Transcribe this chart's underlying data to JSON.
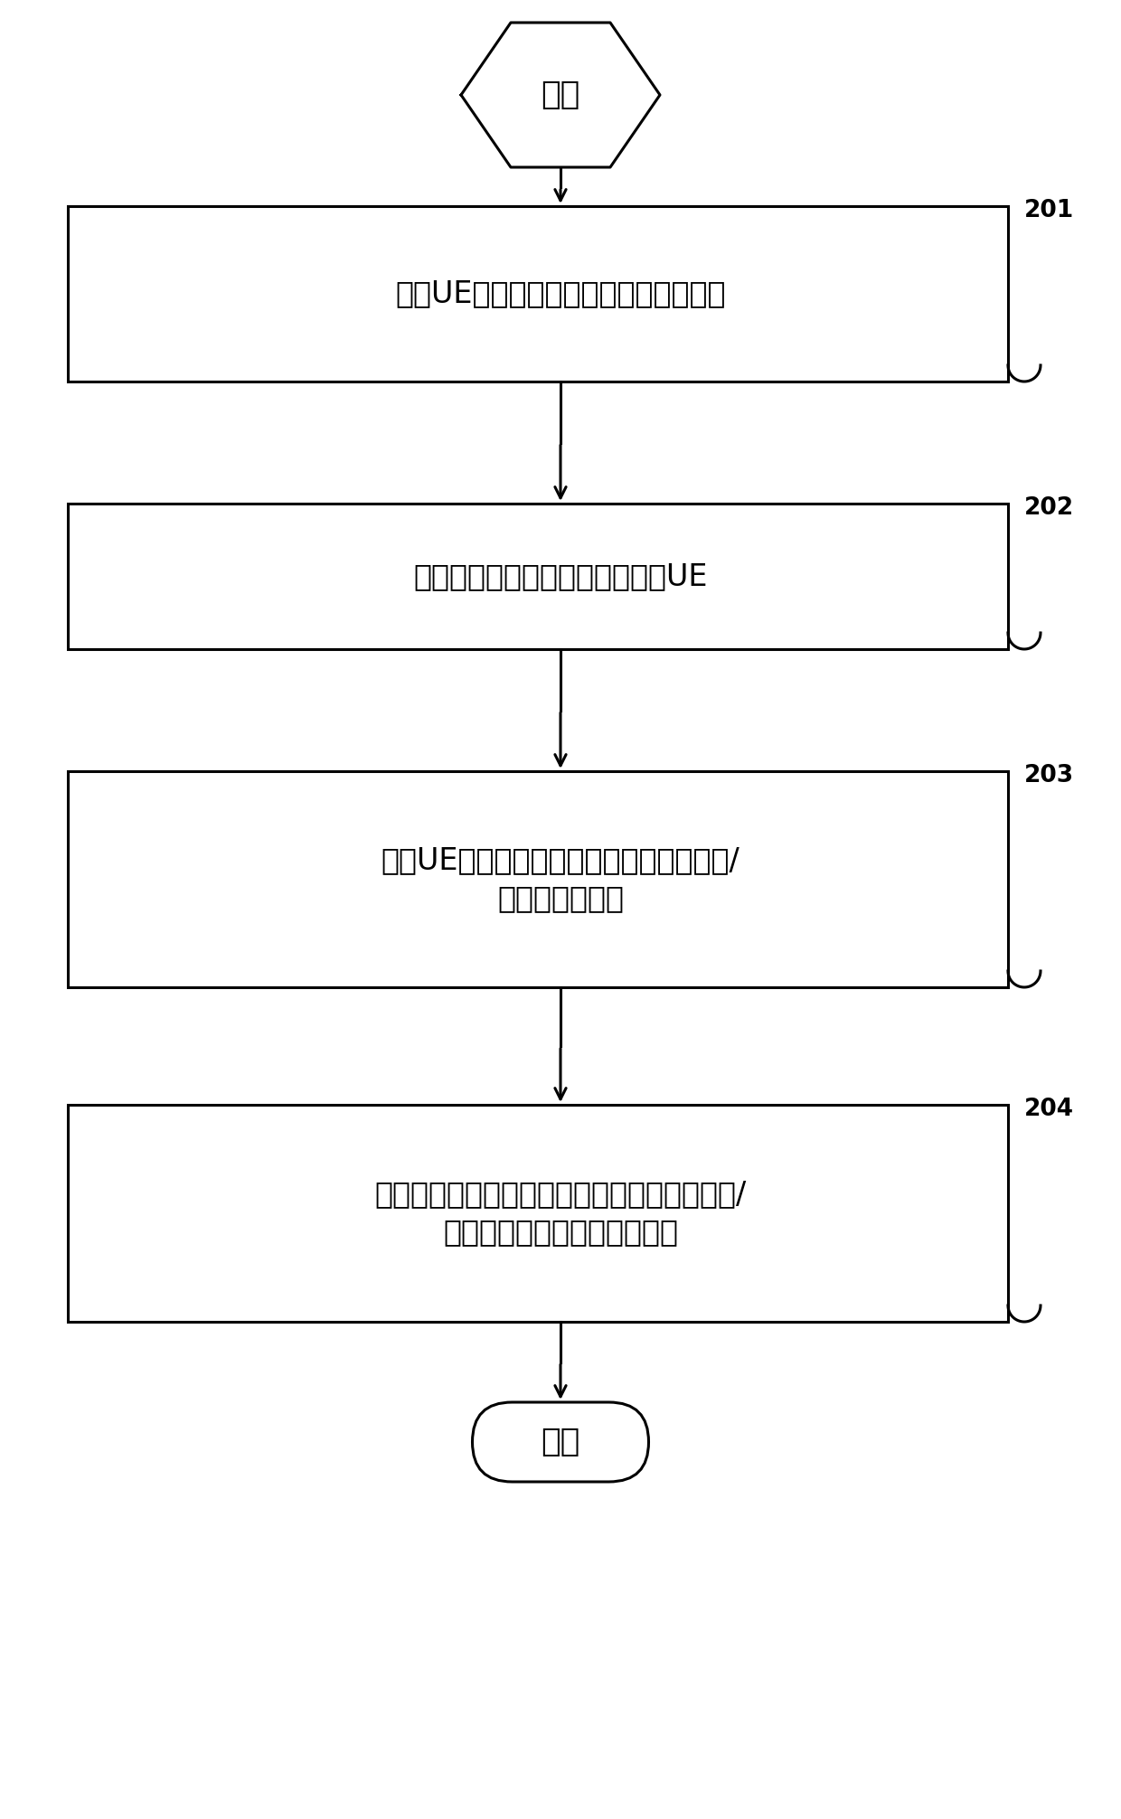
{
  "bg_color": "#ffffff",
  "line_color": "#000000",
  "text_color": "#000000",
  "start_label": "开始",
  "end_label": "结束",
  "boxes": [
    {
      "lines": [
        "配置UE的上行发送波束的功率控制参数"
      ],
      "tag": "201"
    },
    {
      "lines": [
        "将所述功率控制参数发送给所述UE"
      ],
      "tag": "202"
    },
    {
      "lines": [
        "接收UE发送的上行发送波束的功率余量和/",
        "或最大发射功率"
      ],
      "tag": "203"
    },
    {
      "lines": [
        "根据接收到的所述上行发送波束的功率余量和/",
        "或最大发射功率进行功率控制"
      ],
      "tag": "204"
    }
  ],
  "figsize": [
    12.4,
    20.12
  ],
  "dpi": 100
}
